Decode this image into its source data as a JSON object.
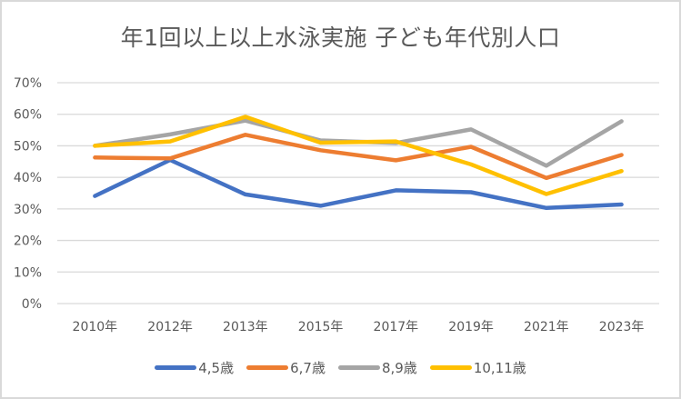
{
  "chart_data": {
    "type": "line",
    "title": "年1回以上以上水泳実施 子ども年代別人口",
    "xlabel": "",
    "ylabel": "",
    "categories": [
      "2010年",
      "2012年",
      "2013年",
      "2015年",
      "2017年",
      "2019年",
      "2021年",
      "2023年"
    ],
    "ylim": [
      0,
      0.7
    ],
    "yticks": [
      0,
      0.1,
      0.2,
      0.3,
      0.4,
      0.5,
      0.6,
      0.7
    ],
    "ytick_labels": [
      "0%",
      "10%",
      "20%",
      "30%",
      "40%",
      "50%",
      "60%",
      "70%"
    ],
    "grid": true,
    "legend_position": "bottom",
    "series": [
      {
        "name": "4,5歳",
        "color": "#4472C4",
        "values": [
          0.341,
          0.455,
          0.346,
          0.31,
          0.359,
          0.353,
          0.303,
          0.314
        ]
      },
      {
        "name": "6,7歳",
        "color": "#ED7D31",
        "values": [
          0.463,
          0.46,
          0.535,
          0.486,
          0.454,
          0.497,
          0.398,
          0.471
        ]
      },
      {
        "name": "8,9歳",
        "color": "#A5A5A5",
        "values": [
          0.5,
          0.536,
          0.58,
          0.517,
          0.509,
          0.552,
          0.437,
          0.578
        ]
      },
      {
        "name": "10,11歳",
        "color": "#FFC000",
        "values": [
          0.5,
          0.514,
          0.592,
          0.51,
          0.514,
          0.441,
          0.347,
          0.42
        ]
      }
    ]
  }
}
